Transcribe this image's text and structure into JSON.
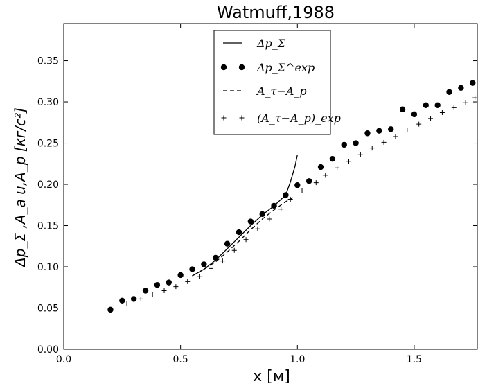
{
  "chart_data": {
    "type": "scatter",
    "title": "Watmuff,1988",
    "xlabel": "x [м]",
    "ylabel": "Δp_Σ ,A_a u,A_p [кг/с²]",
    "xlim": [
      0.0,
      1.77
    ],
    "ylim": [
      0.0,
      0.395
    ],
    "xticks": [
      "0.0",
      "0.5",
      "1.0",
      "1.5"
    ],
    "xtick_values": [
      0.0,
      0.5,
      1.0,
      1.5
    ],
    "yticks": [
      "0.00",
      "0.05",
      "0.10",
      "0.15",
      "0.20",
      "0.25",
      "0.30",
      "0.35"
    ],
    "ytick_values": [
      0.0,
      0.05,
      0.1,
      0.15,
      0.2,
      0.25,
      0.3,
      0.35
    ],
    "grid": false,
    "legend_position": "top-center",
    "series": [
      {
        "name": "Δp_Σ",
        "style": "solid-line",
        "color": "#000000",
        "x": [
          0.55,
          0.6,
          0.65,
          0.7,
          0.75,
          0.8,
          0.85,
          0.9,
          0.95,
          0.97,
          0.99,
          1.0
        ],
        "y": [
          0.089,
          0.097,
          0.108,
          0.122,
          0.136,
          0.15,
          0.163,
          0.174,
          0.187,
          0.203,
          0.222,
          0.236
        ]
      },
      {
        "name": "Δp_Σ^exp",
        "style": "filled-circle",
        "color": "#000000",
        "x": [
          0.2,
          0.25,
          0.3,
          0.35,
          0.4,
          0.45,
          0.5,
          0.55,
          0.6,
          0.65,
          0.7,
          0.75,
          0.8,
          0.85,
          0.9,
          0.95,
          1.0,
          1.05,
          1.1,
          1.15,
          1.2,
          1.25,
          1.3,
          1.35,
          1.4,
          1.45,
          1.5,
          1.55,
          1.6,
          1.65,
          1.7,
          1.75
        ],
        "y": [
          0.048,
          0.059,
          0.061,
          0.071,
          0.078,
          0.081,
          0.09,
          0.097,
          0.103,
          0.111,
          0.128,
          0.142,
          0.155,
          0.164,
          0.174,
          0.187,
          0.199,
          0.204,
          0.221,
          0.231,
          0.248,
          0.25,
          0.262,
          0.265,
          0.267,
          0.291,
          0.285,
          0.296,
          0.296,
          0.312,
          0.317,
          0.323
        ]
      },
      {
        "name": "A_τ−A_p",
        "style": "dashed-line",
        "color": "#000000",
        "x": [
          0.55,
          0.6,
          0.65,
          0.7,
          0.75,
          0.8,
          0.85,
          0.9,
          0.95,
          0.98
        ],
        "y": [
          0.089,
          0.097,
          0.106,
          0.118,
          0.131,
          0.145,
          0.158,
          0.169,
          0.179,
          0.184
        ]
      },
      {
        "name": "(A_τ−A_p)_exp",
        "style": "plus",
        "color": "#000000",
        "x": [
          0.27,
          0.33,
          0.38,
          0.43,
          0.48,
          0.53,
          0.58,
          0.63,
          0.68,
          0.73,
          0.78,
          0.83,
          0.88,
          0.93,
          0.97,
          1.02,
          1.08,
          1.12,
          1.17,
          1.22,
          1.27,
          1.32,
          1.37,
          1.42,
          1.47,
          1.52,
          1.57,
          1.62,
          1.67,
          1.72,
          1.76
        ],
        "y": [
          0.055,
          0.061,
          0.066,
          0.071,
          0.076,
          0.082,
          0.088,
          0.098,
          0.107,
          0.12,
          0.133,
          0.146,
          0.158,
          0.17,
          0.182,
          0.192,
          0.202,
          0.211,
          0.22,
          0.228,
          0.236,
          0.244,
          0.251,
          0.258,
          0.266,
          0.273,
          0.28,
          0.287,
          0.293,
          0.299,
          0.305
        ]
      }
    ]
  }
}
